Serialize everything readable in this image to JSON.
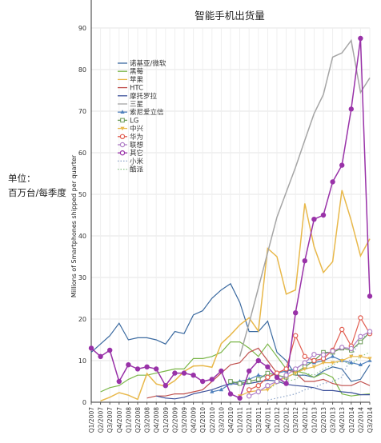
{
  "chart_data": {
    "type": "line",
    "title": "智能手机出货量",
    "ylabel": "Millions of Smartphones shipped per quarter",
    "side_label": [
      "单位：",
      "百万台/每季度"
    ],
    "ylim": [
      0,
      90
    ],
    "yticks": [
      0,
      10,
      20,
      30,
      40,
      50,
      60,
      70,
      80,
      90
    ],
    "grid": true,
    "legend_position": "top-left",
    "categories": [
      "Q1/2007",
      "Q2/2007",
      "Q3/2007",
      "Q4/2007",
      "Q1/2008",
      "Q2/2008",
      "Q3/2008",
      "Q4/2008",
      "Q1/2009",
      "Q2/2009",
      "Q3/2009",
      "Q4/2009",
      "Q1/2010",
      "Q2/2010",
      "Q3/2010",
      "Q4/2010",
      "Q1/2011",
      "Q2/2011",
      "Q3/2011",
      "Q4/2011",
      "Q1/2012",
      "Q2/2012",
      "Q3/2012",
      "Q4/2012",
      "Q1/2013",
      "Q2/2013",
      "Q3/2013",
      "Q4/2013",
      "Q1/2014",
      "Q2/2014",
      "Q3/2014"
    ],
    "tick_labels": [
      "Q1/2007",
      "Q2/2007",
      "Q3/2007",
      "Q4/2007",
      "Q1/2008",
      "Q2/2008",
      "Q3/2008",
      "Q4/2008",
      "Q1/2009",
      "Q2/2009",
      "Q3/2009",
      "Q4/2009",
      "Q1/2010",
      "Q2/2010",
      "Q3/2010",
      "Q4/2010",
      "Q1/2011",
      "Q2/2011",
      "Q3/2011",
      "Q4/2011",
      "Q1/2012",
      "Q2/2012",
      "Q3/2012",
      "Q4/2012",
      "Q1/2013",
      "Q2/2013",
      "Q3/2013",
      "Q4/2013",
      "Q1/2014",
      "Q2/2014",
      "Q3/2014"
    ],
    "series": [
      {
        "name": "诺基亚/微软",
        "color": "#3b6aa0",
        "marker": "none",
        "values": [
          12,
          14,
          16,
          19,
          15,
          15.5,
          15.5,
          15,
          14,
          17,
          16.5,
          21,
          22,
          25,
          27,
          28.5,
          24,
          17,
          17,
          19.5,
          12,
          10,
          6.5,
          6.5,
          6,
          7.5,
          8.5,
          8,
          5,
          5.5,
          9
        ]
      },
      {
        "name": "黑莓",
        "color": "#7ab648",
        "marker": "none",
        "values": [
          null,
          2.5,
          3.5,
          4,
          5.5,
          6.5,
          6.5,
          7,
          7.5,
          8,
          8,
          10.5,
          10.5,
          11,
          12,
          14.5,
          14.5,
          13,
          11,
          14,
          11,
          8,
          7.5,
          7,
          6,
          7,
          6,
          2,
          1.5,
          1.8,
          2
        ]
      },
      {
        "name": "苹果",
        "color": "#e8b84a",
        "marker": "none",
        "values": [
          null,
          0.3,
          1.2,
          2.3,
          1.7,
          0.7,
          6.9,
          4.4,
          3.8,
          5.2,
          7.4,
          8.7,
          8.8,
          8.4,
          14.1,
          16.2,
          18.6,
          20.3,
          17.1,
          37,
          35,
          26,
          27,
          47.8,
          37.4,
          31.2,
          33.8,
          51,
          43.7,
          35.2,
          39.3
        ]
      },
      {
        "name": "HTC",
        "color": "#c0504d",
        "marker": "none",
        "values": [
          null,
          null,
          null,
          null,
          null,
          null,
          1,
          1.5,
          1.5,
          2,
          2,
          2.5,
          3,
          5,
          7,
          9,
          9.5,
          12,
          13,
          10,
          7,
          8,
          7,
          5,
          5,
          5.5,
          4.5,
          4,
          4,
          5,
          4
        ]
      },
      {
        "name": "摩托罗拉",
        "color": "#3b4f9a",
        "marker": "none",
        "values": [
          null,
          null,
          null,
          null,
          null,
          null,
          null,
          1.5,
          1,
          0.8,
          1.2,
          2,
          2.5,
          3,
          3.8,
          4.5,
          4.3,
          4.5,
          4.9,
          5.3,
          5.1,
          4.3,
          4,
          3.8,
          3.5,
          2.8,
          2.8,
          2.5,
          2.3,
          1.8,
          1.8
        ]
      },
      {
        "name": "三星",
        "color": "#a5a5a5",
        "marker": "none",
        "values": [
          null,
          null,
          null,
          null,
          null,
          null,
          null,
          null,
          null,
          null,
          null,
          null,
          null,
          null,
          null,
          null,
          11,
          19,
          27.5,
          36,
          44.5,
          50.5,
          56.5,
          63,
          69.4,
          74,
          83,
          84,
          87,
          74.5,
          78
        ]
      },
      {
        "name": "索尼爱立信",
        "color": "#4f81bd",
        "marker": "star",
        "values": [
          null,
          null,
          null,
          null,
          null,
          null,
          null,
          null,
          null,
          null,
          null,
          null,
          null,
          2.5,
          3,
          4.5,
          5,
          5.5,
          6.5,
          6,
          7,
          7.5,
          8,
          9.5,
          9.5,
          10,
          11,
          10,
          9.5,
          9,
          10
        ]
      },
      {
        "name": "LG",
        "color": "#6a9a55",
        "marker": "square",
        "values": [
          null,
          null,
          null,
          null,
          null,
          null,
          null,
          null,
          null,
          null,
          null,
          null,
          null,
          null,
          null,
          5,
          4.5,
          5,
          5.5,
          7,
          6.5,
          6,
          7,
          8.5,
          10,
          12,
          12,
          13,
          12.5,
          14.5,
          16.8
        ]
      },
      {
        "name": "中兴",
        "color": "#e8b84a",
        "marker": "triangle",
        "values": [
          null,
          null,
          null,
          null,
          null,
          null,
          null,
          null,
          null,
          null,
          null,
          null,
          null,
          null,
          null,
          null,
          1.5,
          2.5,
          2.8,
          3,
          5,
          6,
          7,
          8,
          8.5,
          9.5,
          9.5,
          10,
          11,
          11,
          10.5
        ]
      },
      {
        "name": "华为",
        "color": "#e15c4f",
        "marker": "circle",
        "values": [
          null,
          null,
          null,
          null,
          null,
          null,
          null,
          null,
          null,
          null,
          null,
          null,
          null,
          null,
          null,
          null,
          null,
          3,
          4,
          6,
          7,
          8,
          16,
          11,
          10,
          10.5,
          12.5,
          17.5,
          13.5,
          20.3,
          16.5
        ]
      },
      {
        "name": "联想",
        "color": "#b07fc7",
        "marker": "circle",
        "values": [
          null,
          null,
          null,
          null,
          null,
          null,
          null,
          null,
          null,
          null,
          null,
          null,
          null,
          null,
          null,
          null,
          null,
          1.5,
          2.5,
          4,
          5,
          6.5,
          8,
          9.5,
          11.5,
          11.4,
          12.3,
          13.2,
          12.9,
          15.8,
          17
        ]
      },
      {
        "name": "其它",
        "color": "#9932a8",
        "marker": "circle",
        "values": [
          13,
          11,
          12.5,
          5,
          9,
          8,
          8.5,
          8,
          4,
          7,
          7,
          6.5,
          5,
          5.5,
          7.5,
          2,
          1,
          7.5,
          10,
          8.5,
          6,
          4.5,
          21.5,
          34,
          44,
          45,
          53,
          57,
          70.5,
          87.5,
          25.5
        ]
      },
      {
        "name": "小米",
        "color": "#8aa3c9",
        "marker": "dotted",
        "values": [
          null,
          null,
          null,
          null,
          null,
          null,
          null,
          null,
          null,
          null,
          null,
          null,
          null,
          null,
          null,
          null,
          null,
          null,
          null,
          0.5,
          1,
          1.5,
          2,
          3,
          3.5,
          4.5,
          5,
          6,
          11,
          15,
          17
        ]
      },
      {
        "name": "酷派",
        "color": "#8bc58b",
        "marker": "dotted",
        "values": [
          null,
          null,
          null,
          null,
          null,
          null,
          null,
          null,
          null,
          null,
          null,
          null,
          null,
          null,
          null,
          null,
          null,
          null,
          null,
          3,
          4.5,
          5,
          5.5,
          7,
          6.5,
          8,
          9,
          10,
          9,
          11,
          12
        ]
      }
    ]
  }
}
